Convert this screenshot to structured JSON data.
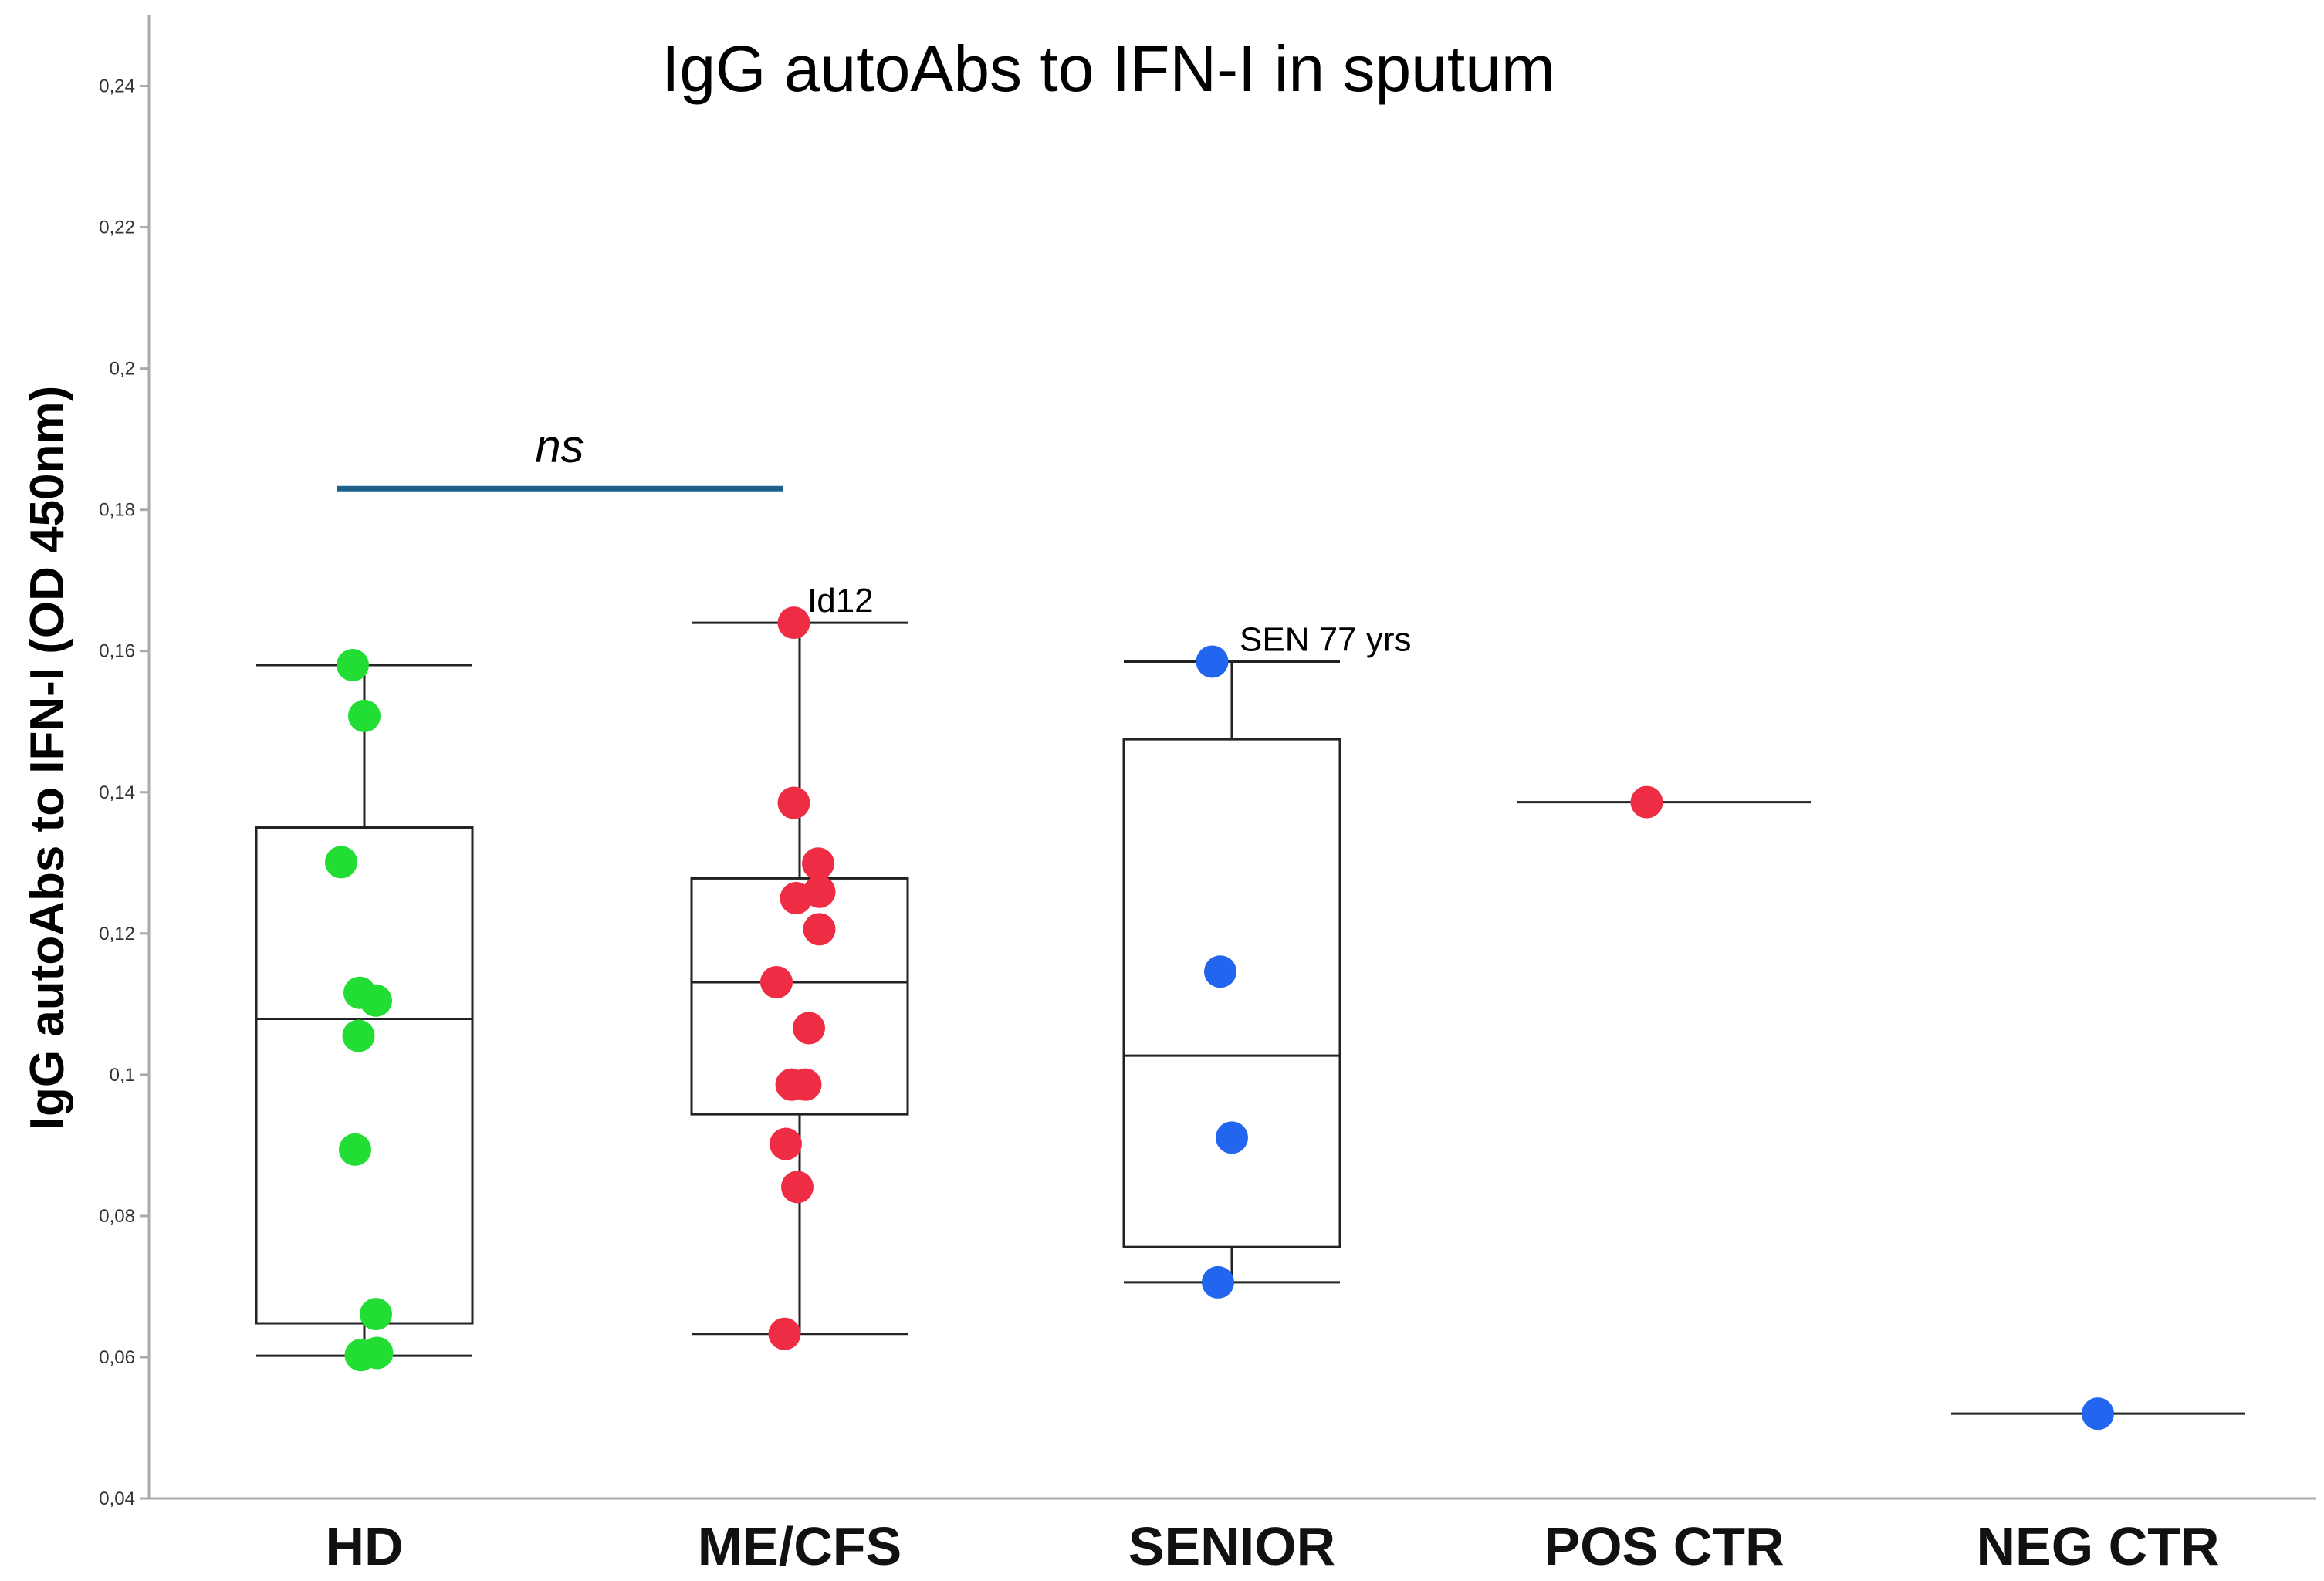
{
  "chart_data": {
    "type": "box",
    "title": "IgG autoAbs to IFN-I in sputum",
    "xlabel": "",
    "ylabel": "IgG autoAbs to IFN-I (OD 450nm)",
    "ylim": [
      0.04,
      0.25
    ],
    "yticks": [
      "0,04",
      "0,06",
      "0,08",
      "0,1",
      "0,12",
      "0,14",
      "0,16",
      "0,18",
      "0,2",
      "0,22",
      "0,24"
    ],
    "categories": [
      "HD",
      "ME/CFS",
      "SENIOR",
      "POS CTR",
      "NEG CTR"
    ],
    "colors": {
      "HD": "#22dd33",
      "ME/CFS": "#ee2d45",
      "SENIOR": "#2266f0",
      "POS CTR": "#ee2d45",
      "NEG CTR": "#2266f0",
      "box": "#222222",
      "significance_bar": "#1f5f8b"
    },
    "groups": [
      {
        "category": "HD",
        "box": {
          "whisker_low": 0.0602,
          "q1": 0.0648,
          "median": 0.1079,
          "q3": 0.135,
          "whisker_high": 0.158
        },
        "points": [
          {
            "x": -0.1,
            "y": 0.158
          },
          {
            "x": 0.0,
            "y": 0.1508
          },
          {
            "x": -0.2,
            "y": 0.1301
          },
          {
            "x": -0.04,
            "y": 0.1116
          },
          {
            "x": 0.1,
            "y": 0.1105
          },
          {
            "x": -0.05,
            "y": 0.1055
          },
          {
            "x": -0.08,
            "y": 0.0894
          },
          {
            "x": 0.1,
            "y": 0.0661
          },
          {
            "x": -0.03,
            "y": 0.0603
          },
          {
            "x": 0.11,
            "y": 0.0606
          }
        ]
      },
      {
        "category": "ME/CFS",
        "box": {
          "whisker_low": 0.0633,
          "q1": 0.0944,
          "median": 0.1131,
          "q3": 0.1278,
          "whisker_high": 0.164
        },
        "points": [
          {
            "x": -0.05,
            "y": 0.164
          },
          {
            "x": -0.05,
            "y": 0.1385
          },
          {
            "x": 0.16,
            "y": 0.1299
          },
          {
            "x": 0.17,
            "y": 0.1259
          },
          {
            "x": -0.03,
            "y": 0.125
          },
          {
            "x": 0.17,
            "y": 0.1206
          },
          {
            "x": -0.2,
            "y": 0.1131
          },
          {
            "x": 0.08,
            "y": 0.1066
          },
          {
            "x": -0.07,
            "y": 0.0986
          },
          {
            "x": 0.05,
            "y": 0.0986
          },
          {
            "x": -0.12,
            "y": 0.0902
          },
          {
            "x": -0.02,
            "y": 0.0841
          },
          {
            "x": -0.13,
            "y": 0.0633
          }
        ],
        "annotation": {
          "text": "Id12",
          "y": 0.164
        }
      },
      {
        "category": "SENIOR",
        "box": {
          "whisker_low": 0.0706,
          "q1": 0.0756,
          "median": 0.1027,
          "q3": 0.1475,
          "whisker_high": 0.1585
        },
        "points": [
          {
            "x": -0.17,
            "y": 0.1585
          },
          {
            "x": -0.1,
            "y": 0.1146
          },
          {
            "x": 0.0,
            "y": 0.0911
          },
          {
            "x": -0.12,
            "y": 0.0706
          }
        ],
        "annotation": {
          "text": "SEN 77 yrs",
          "y": 0.1585
        }
      },
      {
        "category": "POS CTR",
        "box": {
          "median": 0.1386
        },
        "points": [
          {
            "x": -0.15,
            "y": 0.1386
          }
        ]
      },
      {
        "category": "NEG CTR",
        "box": {
          "median": 0.052
        },
        "points": [
          {
            "x": 0.0,
            "y": 0.052
          }
        ]
      }
    ],
    "significance": {
      "from": "HD",
      "to": "ME/CFS",
      "label": "ns",
      "y": 0.183
    }
  }
}
